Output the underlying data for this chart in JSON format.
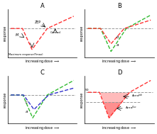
{
  "bg_color": "#ffffff",
  "panel_bg": "#ffffff",
  "panel_titles": [
    "A",
    "B",
    "C",
    "D"
  ],
  "control_label": "Control",
  "zep_label": "ZEP",
  "m_label": "M",
  "ymax_label": "Maximum response(Ymax)",
  "xlabel": "increasing dose",
  "ylabel": "response",
  "dashed_color": "#999999",
  "red_color": "#ff3333",
  "green_color": "#33bb33",
  "blue_color": "#3333cc",
  "pink_fill": "#ffb0b0",
  "title_fontsize": 6,
  "label_fontsize": 3.5,
  "annot_fontsize": 3.8,
  "line_width": 1.0,
  "ylim": [
    -0.75,
    0.5
  ],
  "xlim": [
    0.0,
    1.05
  ]
}
